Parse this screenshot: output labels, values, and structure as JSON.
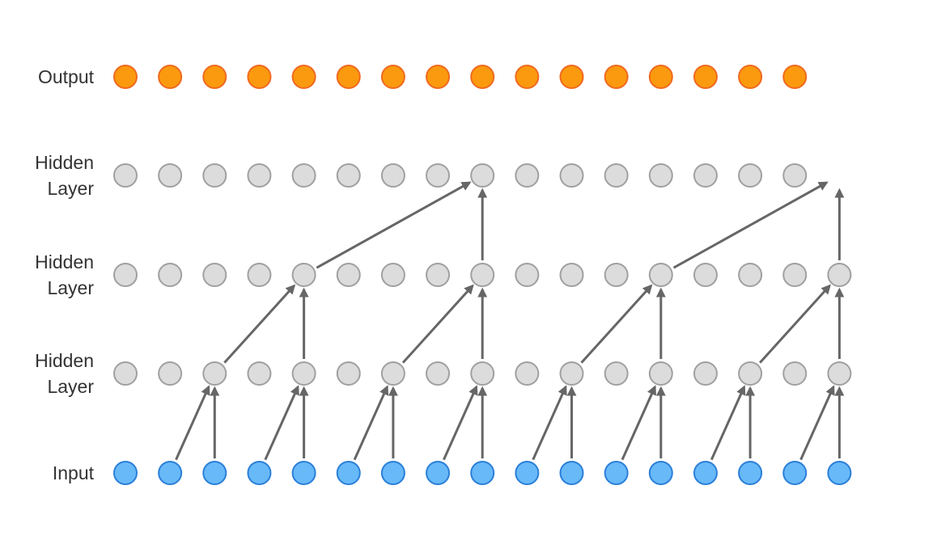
{
  "layers": [
    {
      "label": "Output"
    },
    {
      "label": "Hidden Layer"
    },
    {
      "label": "Hidden Layer"
    },
    {
      "label": "Hidden Layer"
    },
    {
      "label": "Input"
    }
  ]
}
